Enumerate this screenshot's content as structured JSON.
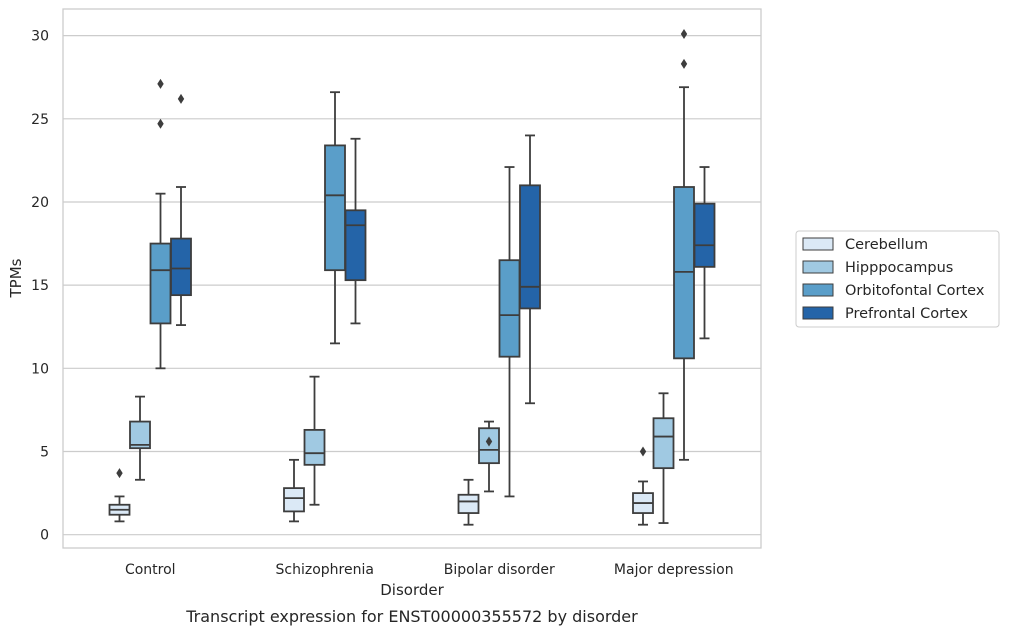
{
  "chart_data": {
    "type": "box",
    "xlabel": "Disorder",
    "ylabel": "TPMs",
    "caption": "Transcript expression for ENST00000355572 by disorder",
    "ylim": [
      -0.8,
      31.6
    ],
    "yticks": [
      0,
      5,
      10,
      15,
      20,
      25,
      30
    ],
    "grid": "horizontal",
    "legend_position": "right",
    "categories": [
      "Control",
      "Schizophrenia",
      "Bipolar disorder",
      "Major depression"
    ],
    "series": [
      {
        "name": "Cerebellum",
        "color": "#dbe9f6",
        "boxes": [
          {
            "whisker_low": 0.8,
            "q1": 1.2,
            "median": 1.5,
            "q3": 1.8,
            "whisker_high": 2.3,
            "outliers": [
              3.7
            ]
          },
          {
            "whisker_low": 0.8,
            "q1": 1.4,
            "median": 2.2,
            "q3": 2.8,
            "whisker_high": 4.5,
            "outliers": []
          },
          {
            "whisker_low": 0.6,
            "q1": 1.3,
            "median": 2.0,
            "q3": 2.4,
            "whisker_high": 3.3,
            "outliers": []
          },
          {
            "whisker_low": 0.6,
            "q1": 1.3,
            "median": 1.9,
            "q3": 2.5,
            "whisker_high": 3.2,
            "outliers": [
              5.0
            ]
          }
        ]
      },
      {
        "name": "Hipppocampus",
        "color": "#a0c9e2",
        "boxes": [
          {
            "whisker_low": 3.3,
            "q1": 5.2,
            "median": 5.4,
            "q3": 6.8,
            "whisker_high": 8.3,
            "outliers": []
          },
          {
            "whisker_low": 1.8,
            "q1": 4.2,
            "median": 4.9,
            "q3": 6.3,
            "whisker_high": 9.5,
            "outliers": []
          },
          {
            "whisker_low": 2.6,
            "q1": 4.3,
            "median": 5.1,
            "q3": 6.4,
            "whisker_high": 6.8,
            "outliers": [
              5.6
            ]
          },
          {
            "whisker_low": 0.7,
            "q1": 4.0,
            "median": 5.9,
            "q3": 7.0,
            "whisker_high": 8.5,
            "outliers": []
          }
        ]
      },
      {
        "name": "Orbitofontal Cortex",
        "color": "#5a9ec9",
        "boxes": [
          {
            "whisker_low": 10.0,
            "q1": 12.7,
            "median": 15.9,
            "q3": 17.5,
            "whisker_high": 20.5,
            "outliers": [
              24.7,
              27.1
            ]
          },
          {
            "whisker_low": 11.5,
            "q1": 15.9,
            "median": 20.4,
            "q3": 23.4,
            "whisker_high": 26.6,
            "outliers": []
          },
          {
            "whisker_low": 2.3,
            "q1": 10.7,
            "median": 13.2,
            "q3": 16.5,
            "whisker_high": 22.1,
            "outliers": []
          },
          {
            "whisker_low": 4.5,
            "q1": 10.6,
            "median": 15.8,
            "q3": 20.9,
            "whisker_high": 26.9,
            "outliers": [
              28.3,
              30.1
            ]
          }
        ]
      },
      {
        "name": "Prefrontal Cortex",
        "color": "#2464a8",
        "boxes": [
          {
            "whisker_low": 12.6,
            "q1": 14.4,
            "median": 16.0,
            "q3": 17.8,
            "whisker_high": 20.9,
            "outliers": [
              26.2
            ]
          },
          {
            "whisker_low": 12.7,
            "q1": 15.3,
            "median": 18.6,
            "q3": 19.5,
            "whisker_high": 23.8,
            "outliers": []
          },
          {
            "whisker_low": 7.9,
            "q1": 13.6,
            "median": 14.9,
            "q3": 21.0,
            "whisker_high": 24.0,
            "outliers": []
          },
          {
            "whisker_low": 11.8,
            "q1": 16.1,
            "median": 17.4,
            "q3": 19.9,
            "whisker_high": 22.1,
            "outliers": []
          }
        ]
      }
    ]
  }
}
